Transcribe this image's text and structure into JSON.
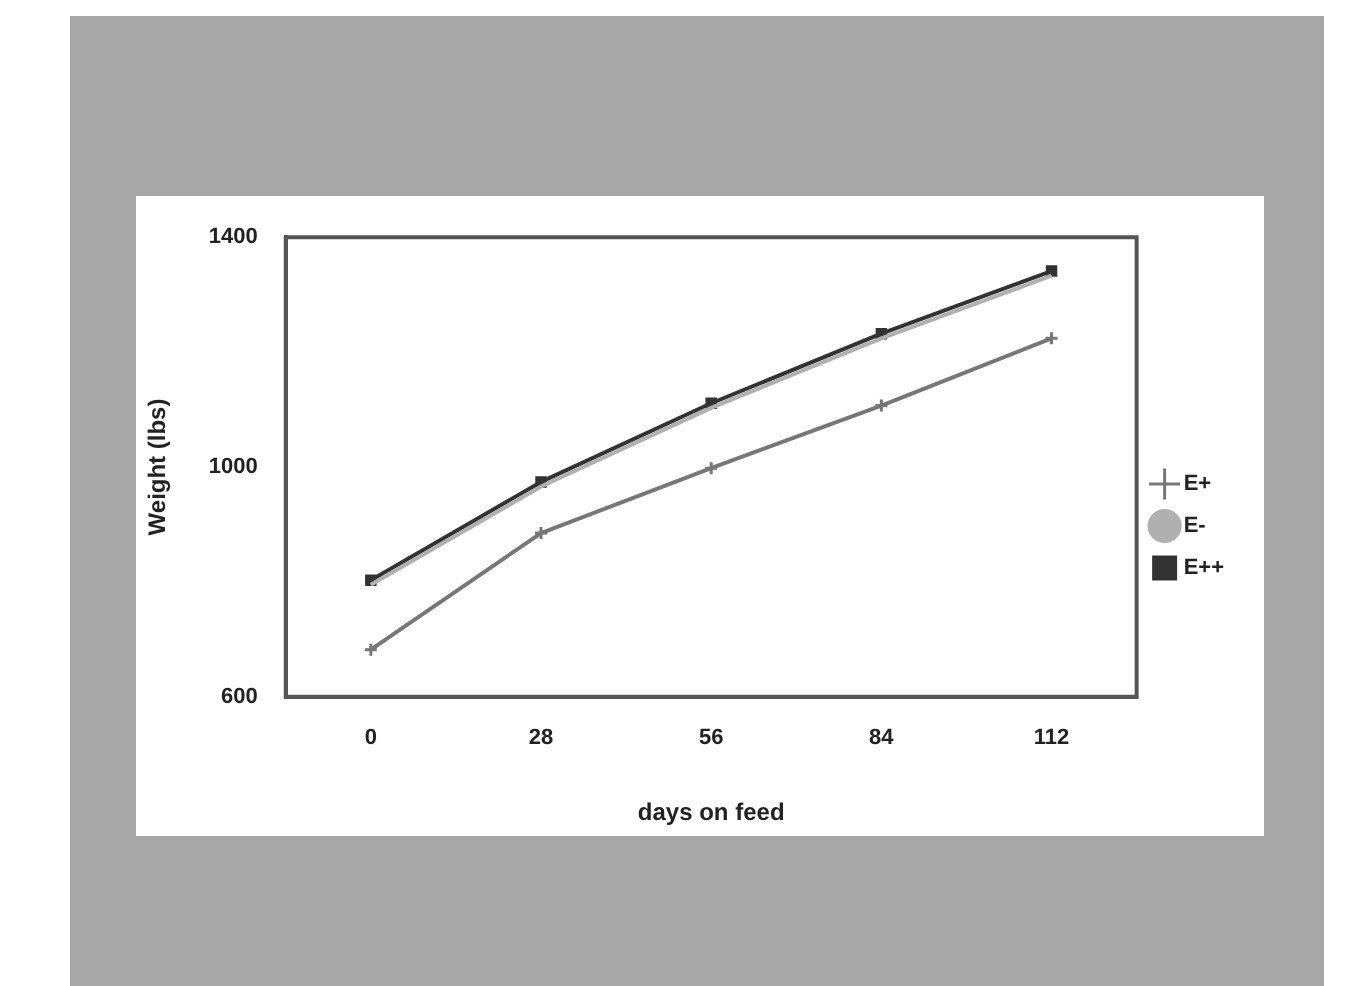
{
  "chart_data": {
    "type": "line",
    "xlabel": "days on feed",
    "ylabel": "Weight (lbs)",
    "categories": [
      "0",
      "28",
      "56",
      "84",
      "112"
    ],
    "series": [
      {
        "name": "E+",
        "color": "#777777",
        "values": [
          682,
          885,
          998,
          1107,
          1224
        ],
        "marker": "cross"
      },
      {
        "name": "E-",
        "color": "#b0b0b0",
        "values": [
          795,
          966,
          1103,
          1224,
          1333
        ],
        "marker": "none"
      },
      {
        "name": "E++",
        "color": "#333333",
        "values": [
          803,
          974,
          1111,
          1232,
          1341
        ],
        "marker": "square"
      }
    ],
    "ylim": [
      600,
      1400
    ],
    "yticks": [
      600,
      1000,
      1400
    ],
    "grid": false,
    "legend": "right"
  }
}
